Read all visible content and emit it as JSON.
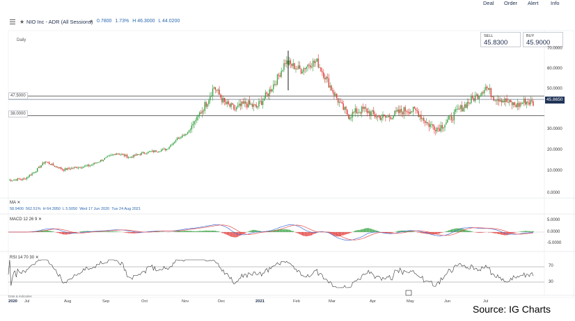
{
  "header": {
    "instrument": "NIO Inc - ADR (All Sessions)",
    "change": "0.7800",
    "change_pct": "1.73%",
    "high": "H 46.3000",
    "low": "L 44.0200",
    "actions": [
      "Deal",
      "Order",
      "Alert",
      "Info"
    ]
  },
  "prices": {
    "sell_label": "SELL",
    "sell_value": "45.8300",
    "buy_label": "BUY",
    "buy_value": "45.9000"
  },
  "chart": {
    "interval": "Daily",
    "upper_line_label": "47.5000",
    "lower_line_label": "38.0000",
    "last_price": "45.8650",
    "y_ticks": [
      "70.0000",
      "60.0000",
      "50.0000",
      "40.0000",
      "30.0000",
      "20.0000",
      "10.0000",
      "0.0000"
    ]
  },
  "indicators": {
    "ma": {
      "label": "MA",
      "close_icon": "✕",
      "values": [
        "58.9400",
        "562.51%",
        "H 64.3950",
        "L 5.5050",
        "Wed 17 Jun 2020",
        "Tue 24 Aug 2021"
      ]
    },
    "macd": {
      "label": "MACD  12  26  9",
      "close_icon": "✕",
      "y_ticks": [
        "5.0000",
        "0.0000",
        "-5.0000"
      ]
    },
    "rsi": {
      "label": "RSI  14  70  30",
      "close_icon": "✕",
      "y_ticks": [
        "70",
        "30"
      ]
    }
  },
  "x_axis": [
    {
      "label": "2020",
      "year": true
    },
    {
      "label": "Jul",
      "year": false
    },
    {
      "label": "Aug",
      "year": false
    },
    {
      "label": "Sep",
      "year": false
    },
    {
      "label": "Oct",
      "year": false
    },
    {
      "label": "Nov",
      "year": false
    },
    {
      "label": "Dec",
      "year": false
    },
    {
      "label": "2021",
      "year": true
    },
    {
      "label": "Feb",
      "year": false
    },
    {
      "label": "Mar",
      "year": false
    },
    {
      "label": "Apr",
      "year": false
    },
    {
      "label": "May",
      "year": false
    },
    {
      "label": "Jun",
      "year": false
    },
    {
      "label": "Jul",
      "year": false
    }
  ],
  "data_label": "Data & indicative",
  "source": "Source: IG Charts",
  "colors": {
    "up": "#2e9e3a",
    "down": "#e0312f",
    "macd_line": "#3f6fd6",
    "signal_line": "#e34a4a",
    "rsi_line": "#333333",
    "badge": "#1f3356"
  },
  "icons": {
    "menu": "menu-icon",
    "favourite": "star-icon",
    "dropdown": "chevron-down-icon",
    "calendar": "calendar-icon"
  },
  "chart_data": {
    "type": "candlestick",
    "y_range": [
      0,
      70
    ],
    "reference_levels": [
      47.5,
      38.0
    ],
    "last_price": 45.865,
    "anchors": [
      [
        0,
        7
      ],
      [
        12,
        7.5
      ],
      [
        20,
        11
      ],
      [
        28,
        16
      ],
      [
        34,
        14
      ],
      [
        42,
        12
      ],
      [
        50,
        13
      ],
      [
        62,
        14
      ],
      [
        72,
        17
      ],
      [
        82,
        20
      ],
      [
        92,
        18
      ],
      [
        102,
        20
      ],
      [
        112,
        21
      ],
      [
        120,
        22
      ],
      [
        128,
        27
      ],
      [
        136,
        30
      ],
      [
        144,
        38
      ],
      [
        150,
        44
      ],
      [
        156,
        52
      ],
      [
        164,
        44
      ],
      [
        172,
        41
      ],
      [
        180,
        44
      ],
      [
        188,
        42
      ],
      [
        196,
        48
      ],
      [
        204,
        56
      ],
      [
        210,
        64
      ],
      [
        216,
        62
      ],
      [
        222,
        60
      ],
      [
        228,
        63
      ],
      [
        234,
        64
      ],
      [
        240,
        57
      ],
      [
        246,
        50
      ],
      [
        252,
        43
      ],
      [
        258,
        38
      ],
      [
        264,
        40
      ],
      [
        270,
        41
      ],
      [
        278,
        38
      ],
      [
        286,
        37
      ],
      [
        294,
        39
      ],
      [
        302,
        41
      ],
      [
        310,
        40
      ],
      [
        318,
        34
      ],
      [
        326,
        32
      ],
      [
        334,
        36
      ],
      [
        342,
        41
      ],
      [
        350,
        45
      ],
      [
        356,
        48
      ],
      [
        362,
        52
      ],
      [
        368,
        47
      ],
      [
        374,
        46
      ],
      [
        380,
        44
      ],
      [
        386,
        43
      ],
      [
        392,
        45
      ],
      [
        398,
        44
      ]
    ]
  }
}
